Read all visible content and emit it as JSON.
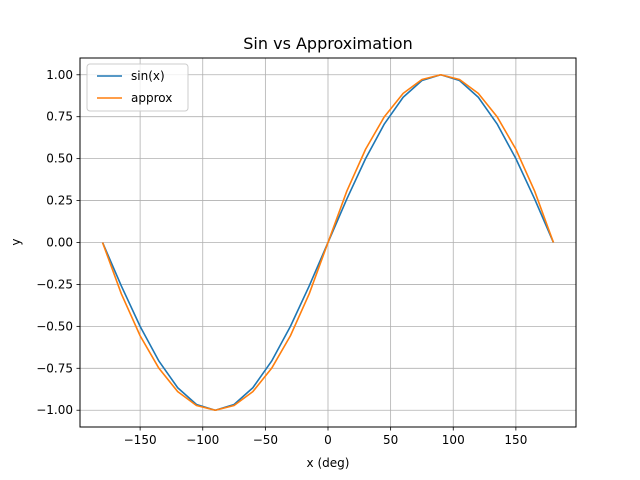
{
  "chart_data": {
    "type": "line",
    "title": "Sin vs Approximation",
    "xlabel": "x (deg)",
    "ylabel": "y",
    "xlim": [
      -198,
      198
    ],
    "ylim": [
      -1.1,
      1.1
    ],
    "xticks": [
      -150,
      -100,
      -50,
      0,
      50,
      100,
      150
    ],
    "xtick_labels": [
      "−150",
      "−100",
      "−50",
      "0",
      "50",
      "100",
      "150"
    ],
    "yticks": [
      -1.0,
      -0.75,
      -0.5,
      -0.25,
      0.0,
      0.25,
      0.5,
      0.75,
      1.0
    ],
    "ytick_labels": [
      "−1.00",
      "−0.75",
      "−0.50",
      "−0.25",
      "0.00",
      "0.25",
      "0.50",
      "0.75",
      "1.00"
    ],
    "grid": true,
    "legend_position": "top-left",
    "series": [
      {
        "name": "sin(x)",
        "color": "#1f77b4",
        "x": [
          -180,
          -165,
          -150,
          -135,
          -120,
          -105,
          -90,
          -75,
          -60,
          -45,
          -30,
          -15,
          0,
          15,
          30,
          45,
          60,
          75,
          90,
          105,
          120,
          135,
          150,
          165,
          180
        ],
        "y": [
          0.0,
          -0.259,
          -0.5,
          -0.707,
          -0.866,
          -0.966,
          -1.0,
          -0.966,
          -0.866,
          -0.707,
          -0.5,
          -0.259,
          0.0,
          0.259,
          0.5,
          0.707,
          0.866,
          0.966,
          1.0,
          0.966,
          0.866,
          0.707,
          0.5,
          0.259,
          0.0
        ]
      },
      {
        "name": "approx",
        "color": "#ff7f0e",
        "x": [
          -180,
          -165,
          -150,
          -135,
          -120,
          -105,
          -90,
          -75,
          -60,
          -45,
          -30,
          -15,
          0,
          15,
          30,
          45,
          60,
          75,
          90,
          105,
          120,
          135,
          150,
          165,
          180
        ],
        "y": [
          0.0,
          -0.306,
          -0.556,
          -0.75,
          -0.889,
          -0.972,
          -1.0,
          -0.972,
          -0.889,
          -0.75,
          -0.556,
          -0.306,
          0.0,
          0.306,
          0.556,
          0.75,
          0.889,
          0.972,
          1.0,
          0.972,
          0.889,
          0.75,
          0.556,
          0.306,
          0.0
        ]
      }
    ]
  }
}
